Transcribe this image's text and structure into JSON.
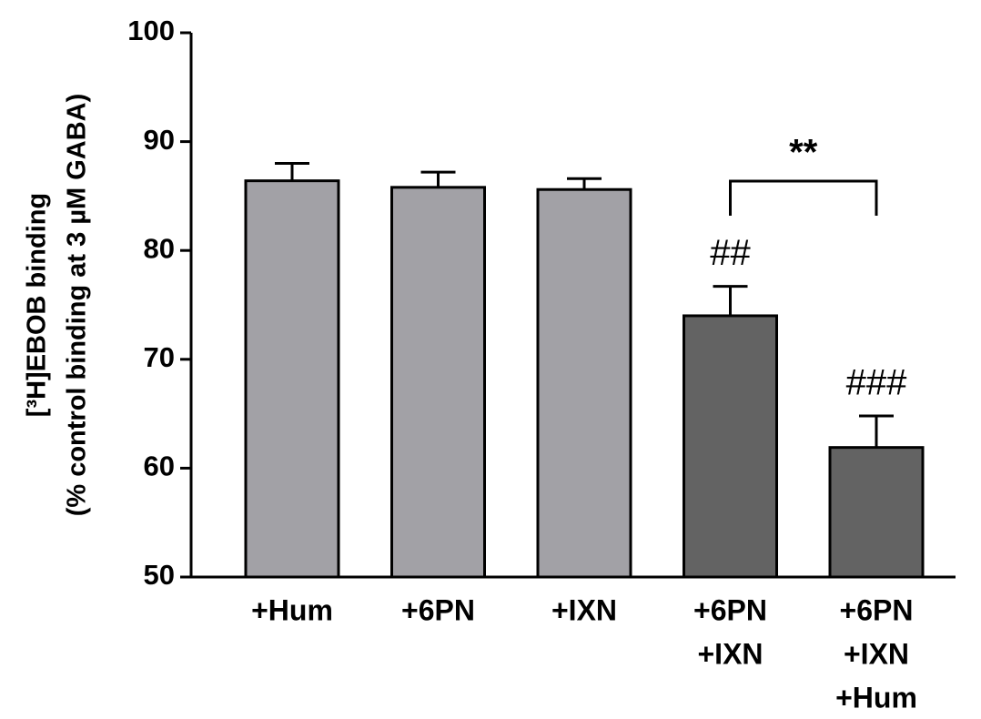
{
  "chart_data": {
    "type": "bar",
    "y_label": [
      "[³H]EBOB binding",
      "(% control binding at 3 µM GABA)"
    ],
    "categories": [
      [
        "+Hum"
      ],
      [
        "+6PN"
      ],
      [
        "+IXN"
      ],
      [
        "+6PN",
        "+IXN"
      ],
      [
        "+6PN",
        "+IXN",
        "+Hum"
      ]
    ],
    "values": [
      86.4,
      85.8,
      85.6,
      74.0,
      61.9
    ],
    "errors": [
      1.6,
      1.4,
      1.0,
      2.7,
      2.9
    ],
    "colors": [
      "#a2a1a6",
      "#a2a1a6",
      "#a2a1a6",
      "#636363",
      "#636363"
    ],
    "significance": [
      null,
      null,
      null,
      "##",
      "###"
    ],
    "comparison": {
      "text": "**",
      "between": [
        3,
        4
      ]
    },
    "ylim": [
      50,
      100
    ],
    "yticks": [
      50,
      60,
      70,
      80,
      90,
      100
    ],
    "grid": false
  }
}
